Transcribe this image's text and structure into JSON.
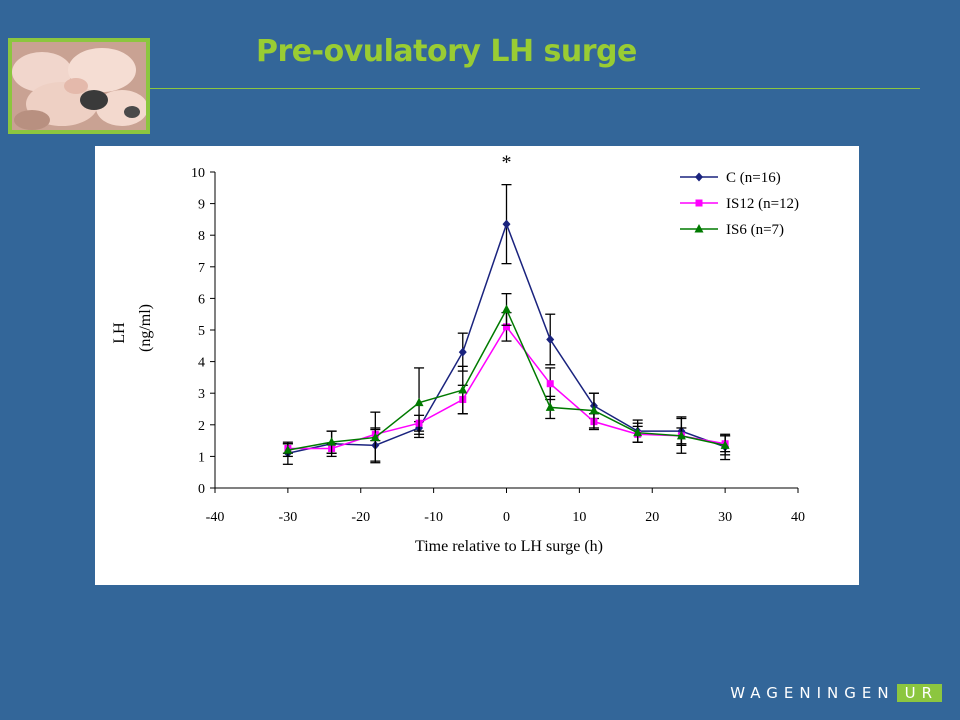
{
  "slide": {
    "title": "Pre-ovulatory LH surge",
    "accent_color": "#99cc33",
    "background_color": "#336699",
    "photo_icon": "piglets-photo",
    "logo": {
      "text": "WAGENINGEN",
      "suffix": "UR"
    }
  },
  "chart_data": {
    "type": "line",
    "xlabel": "Time relative to LH surge (h)",
    "ylabel": "LH",
    "ylabel_unit": "(ng/ml)",
    "xlim": [
      -40,
      40
    ],
    "ylim": [
      0,
      10
    ],
    "xticks": [
      -40,
      -30,
      -20,
      -10,
      0,
      10,
      20,
      30,
      40
    ],
    "yticks": [
      0,
      1,
      2,
      3,
      4,
      5,
      6,
      7,
      8,
      9,
      10
    ],
    "grid": false,
    "legend_position": "top-right",
    "annotations": [
      {
        "text": "*",
        "x": 0,
        "y": 10.3
      }
    ],
    "series": [
      {
        "name": "C (n=16)",
        "color": "#1a237e",
        "marker": "diamond",
        "x": [
          -30,
          -24,
          -18,
          -12,
          -6,
          0,
          6,
          12,
          18,
          24,
          30
        ],
        "y": [
          1.1,
          1.4,
          1.35,
          1.9,
          4.3,
          8.35,
          4.7,
          2.6,
          1.8,
          1.8,
          1.3
        ],
        "err": [
          0.35,
          0.4,
          0.5,
          0.2,
          0.6,
          1.25,
          0.8,
          0.4,
          0.35,
          0.45,
          0.4
        ]
      },
      {
        "name": "IS12 (n=12)",
        "color": "#ff00ff",
        "marker": "square",
        "x": [
          -30,
          -24,
          -18,
          -12,
          -6,
          0,
          6,
          12,
          18,
          24,
          30
        ],
        "y": [
          1.25,
          1.25,
          1.7,
          2.05,
          2.8,
          5.1,
          3.3,
          2.1,
          1.7,
          1.65,
          1.4
        ],
        "err": [
          0.15,
          0.15,
          0.2,
          0.25,
          0.45,
          0.45,
          0.5,
          0.25,
          0.25,
          0.25,
          0.25
        ]
      },
      {
        "name": "IS6 (n=7)",
        "color": "#007a00",
        "marker": "triangle",
        "x": [
          -30,
          -24,
          -18,
          -12,
          -6,
          0,
          6,
          12,
          18,
          24,
          30
        ],
        "y": [
          1.2,
          1.45,
          1.6,
          2.7,
          3.1,
          5.65,
          2.55,
          2.45,
          1.75,
          1.65,
          1.35
        ],
        "err": [
          0.2,
          0.35,
          0.8,
          1.1,
          0.75,
          0.5,
          0.35,
          0.55,
          0.3,
          0.55,
          0.3
        ]
      }
    ]
  }
}
